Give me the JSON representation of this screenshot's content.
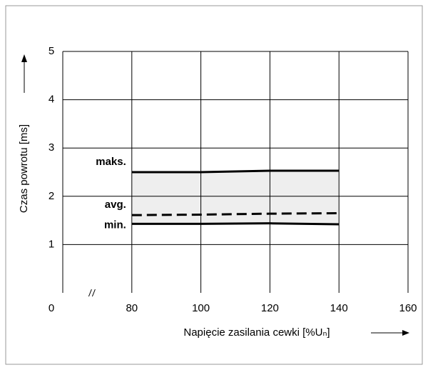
{
  "chart_data": {
    "type": "line",
    "y_label": "Czas powrotu [ms]",
    "x_label": "Napięcie zasilania cewki [%Uₙ]",
    "x": [
      80,
      100,
      120,
      140
    ],
    "series": [
      {
        "name": "maks.",
        "color": "#000000",
        "dash": false,
        "values": [
          2.5,
          2.5,
          2.53,
          2.53
        ]
      },
      {
        "name": "avg.",
        "color": "#000000",
        "dash": true,
        "values": [
          1.61,
          1.62,
          1.64,
          1.65
        ]
      },
      {
        "name": "min.",
        "color": "#000000",
        "dash": false,
        "values": [
          1.43,
          1.43,
          1.44,
          1.42
        ]
      }
    ],
    "band_color": "#eeeeee",
    "xlim": [
      60,
      160
    ],
    "xticks": [
      {
        "value": 60,
        "label": "0"
      },
      80,
      100,
      120,
      140,
      160
    ],
    "ylim": [
      0,
      5
    ],
    "yticks": [
      1,
      2,
      3,
      4,
      5
    ],
    "grid": true
  }
}
